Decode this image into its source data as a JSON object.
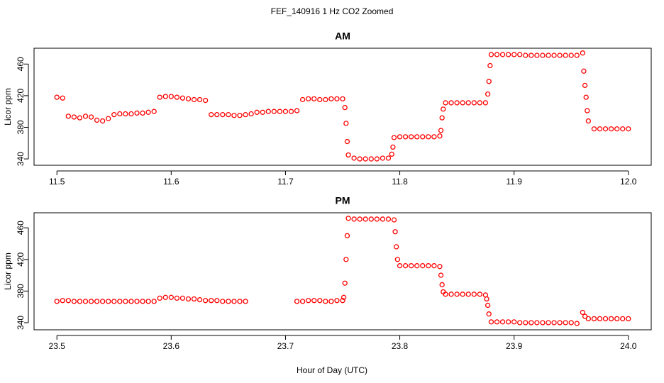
{
  "title": "FEF_140916  1 Hz CO2 Zoomed",
  "x_label": "Hour of Day (UTC)",
  "chart_data": [
    {
      "type": "scatter",
      "title": "AM",
      "y_label": "Licor ppm",
      "color": "red",
      "xlim": [
        11.48,
        12.02
      ],
      "ylim": [
        332,
        480
      ],
      "xticks": [
        11.5,
        11.6,
        11.7,
        11.8,
        11.9,
        {
          "value": 12,
          "label": "12.0"
        }
      ],
      "yticks": [
        340,
        380,
        420,
        460
      ],
      "x": [
        11.5,
        11.505,
        11.51,
        11.515,
        11.52,
        11.525,
        11.53,
        11.535,
        11.54,
        11.545,
        11.55,
        11.555,
        11.56,
        11.565,
        11.57,
        11.575,
        11.58,
        11.585,
        11.59,
        11.595,
        11.6,
        11.605,
        11.61,
        11.615,
        11.62,
        11.625,
        11.63,
        11.635,
        11.64,
        11.645,
        11.65,
        11.655,
        11.66,
        11.665,
        11.67,
        11.675,
        11.68,
        11.685,
        11.69,
        11.695,
        11.7,
        11.705,
        11.71,
        11.715,
        11.72,
        11.725,
        11.73,
        11.735,
        11.74,
        11.745,
        11.75,
        11.752,
        11.753,
        11.754,
        11.755,
        11.76,
        11.765,
        11.77,
        11.775,
        11.78,
        11.785,
        11.79,
        11.793,
        11.794,
        11.795,
        11.8,
        11.805,
        11.81,
        11.815,
        11.82,
        11.825,
        11.83,
        11.835,
        11.836,
        11.837,
        11.838,
        11.84,
        11.845,
        11.85,
        11.855,
        11.86,
        11.865,
        11.87,
        11.875,
        11.877,
        11.878,
        11.879,
        11.88,
        11.885,
        11.89,
        11.895,
        11.9,
        11.905,
        11.91,
        11.915,
        11.92,
        11.925,
        11.93,
        11.935,
        11.94,
        11.945,
        11.95,
        11.955,
        11.96,
        11.961,
        11.962,
        11.963,
        11.964,
        11.965,
        11.97,
        11.975,
        11.98,
        11.985,
        11.99,
        11.995,
        12.0
      ],
      "y": [
        418,
        417,
        394,
        393,
        392,
        394,
        393,
        389,
        388,
        391,
        396,
        397,
        397,
        397,
        398,
        398,
        399,
        400,
        418,
        419,
        419,
        418,
        417,
        416,
        415,
        415,
        414,
        396,
        396,
        396,
        396,
        395,
        395,
        396,
        397,
        399,
        399,
        400,
        400,
        400,
        400,
        400,
        401,
        415,
        416,
        416,
        415,
        415,
        416,
        416,
        416,
        405,
        385,
        362,
        345,
        341,
        340,
        340,
        340,
        340,
        341,
        341,
        346,
        355,
        367,
        368,
        368,
        368,
        368,
        368,
        368,
        368,
        369,
        376,
        392,
        403,
        411,
        411,
        411,
        411,
        411,
        411,
        411,
        411,
        422,
        438,
        458,
        472,
        472,
        472,
        472,
        472,
        472,
        471,
        471,
        471,
        471,
        471,
        471,
        471,
        471,
        471,
        471,
        474,
        451,
        433,
        418,
        401,
        388,
        378,
        378,
        378,
        378,
        378,
        378,
        378
      ]
    },
    {
      "type": "scatter",
      "title": "PM",
      "y_label": "Licor ppm",
      "color": "red",
      "xlim": [
        23.48,
        24.02
      ],
      "ylim": [
        331,
        479
      ],
      "xticks": [
        23.5,
        23.6,
        23.7,
        23.8,
        23.9,
        {
          "value": 24,
          "label": "24.0"
        }
      ],
      "yticks": [
        340,
        380,
        420,
        460
      ],
      "x": [
        23.5,
        23.505,
        23.51,
        23.515,
        23.52,
        23.525,
        23.53,
        23.535,
        23.54,
        23.545,
        23.55,
        23.555,
        23.56,
        23.565,
        23.57,
        23.575,
        23.58,
        23.585,
        23.59,
        23.595,
        23.6,
        23.605,
        23.61,
        23.615,
        23.62,
        23.625,
        23.63,
        23.635,
        23.64,
        23.645,
        23.65,
        23.655,
        23.66,
        23.665,
        23.71,
        23.715,
        23.72,
        23.725,
        23.73,
        23.735,
        23.74,
        23.745,
        23.75,
        23.751,
        23.752,
        23.753,
        23.754,
        23.755,
        23.76,
        23.765,
        23.77,
        23.775,
        23.78,
        23.785,
        23.79,
        23.795,
        23.796,
        23.797,
        23.798,
        23.8,
        23.805,
        23.81,
        23.815,
        23.82,
        23.825,
        23.83,
        23.835,
        23.836,
        23.837,
        23.838,
        23.84,
        23.845,
        23.85,
        23.855,
        23.86,
        23.865,
        23.87,
        23.875,
        23.876,
        23.877,
        23.878,
        23.88,
        23.885,
        23.89,
        23.895,
        23.9,
        23.905,
        23.91,
        23.915,
        23.92,
        23.925,
        23.93,
        23.935,
        23.94,
        23.945,
        23.95,
        23.955,
        23.96,
        23.962,
        23.965,
        23.97,
        23.975,
        23.98,
        23.985,
        23.99,
        23.995,
        24.0
      ],
      "y": [
        367,
        368,
        368,
        367,
        367,
        367,
        367,
        367,
        367,
        367,
        367,
        367,
        367,
        367,
        367,
        367,
        367,
        367,
        371,
        372,
        372,
        371,
        371,
        370,
        370,
        369,
        368,
        368,
        368,
        367,
        367,
        367,
        367,
        367,
        367,
        367,
        368,
        368,
        368,
        367,
        367,
        368,
        368,
        372,
        390,
        420,
        450,
        472,
        471,
        471,
        471,
        471,
        471,
        471,
        471,
        470,
        455,
        436,
        420,
        412,
        412,
        412,
        412,
        412,
        412,
        412,
        411,
        400,
        388,
        379,
        376,
        376,
        376,
        376,
        376,
        376,
        376,
        375,
        370,
        362,
        351,
        341,
        341,
        341,
        341,
        341,
        340,
        340,
        340,
        340,
        340,
        340,
        340,
        340,
        340,
        340,
        339,
        353,
        348,
        345,
        345,
        345,
        345,
        345,
        345,
        345,
        345
      ]
    }
  ]
}
